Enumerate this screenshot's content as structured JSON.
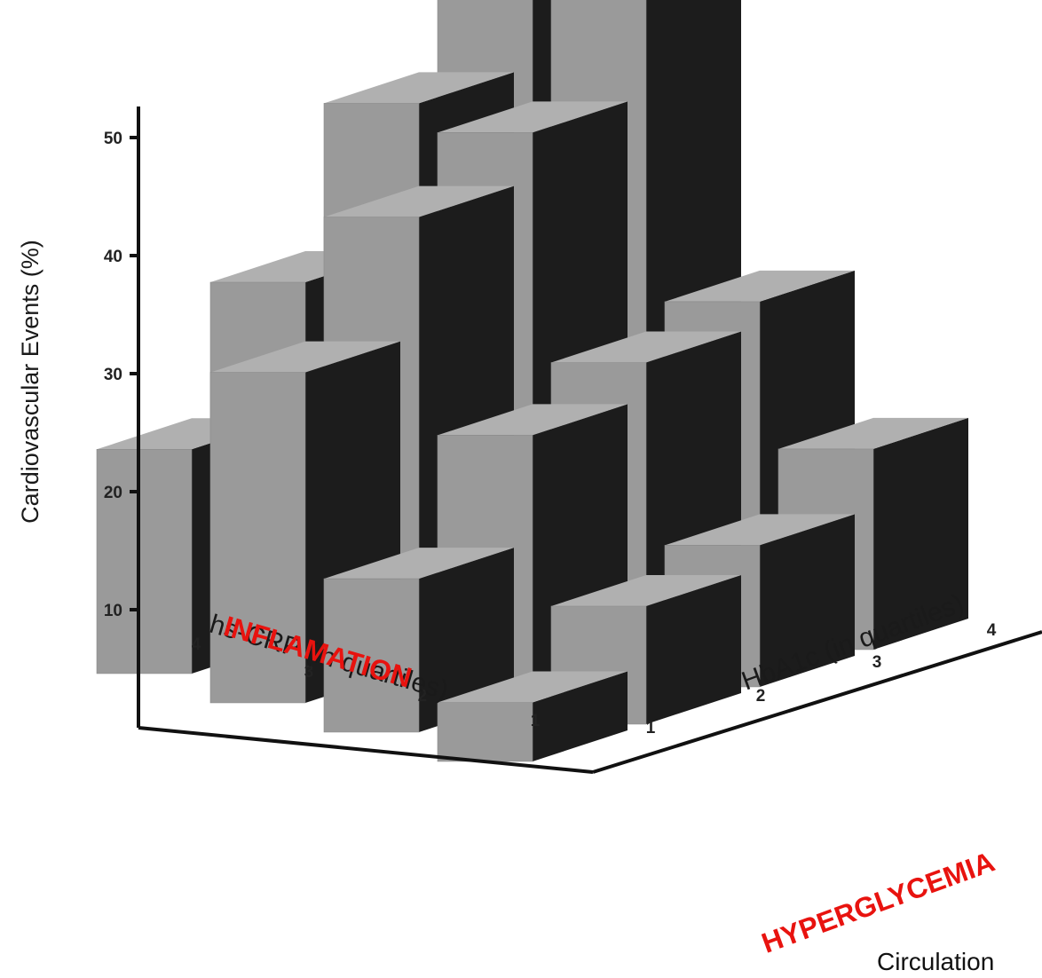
{
  "chart_data": {
    "type": "bar",
    "subtype": "3d-bar-grid",
    "ylabel": "Cardiovascular Events (%)",
    "y_ticks": [
      "10",
      "20",
      "30",
      "40",
      "50"
    ],
    "ylim": [
      0,
      50
    ],
    "x_axis": {
      "label": "hs-CRP (in quartiles)",
      "annotation": "INFLAMATION",
      "categories": [
        "1",
        "2",
        "3",
        "4"
      ]
    },
    "z_axis": {
      "label": "HbA1c (in quartiles)",
      "annotation": "HYPERGLYCEMIA",
      "categories": [
        "1",
        "2",
        "3",
        "4"
      ]
    },
    "series": [
      {
        "hs_crp_quartile": "1",
        "values": [
          5,
          10,
          12,
          17
        ]
      },
      {
        "hs_crp_quartile": "2",
        "values": [
          13,
          22,
          25,
          27
        ]
      },
      {
        "hs_crp_quartile": "3",
        "values": [
          28,
          38,
          42,
          54
        ]
      },
      {
        "hs_crp_quartile": "4",
        "values": [
          19,
          30,
          42,
          55
        ]
      }
    ],
    "colors": {
      "front_face": "#9a9a9a",
      "side_face": "#1c1c1c",
      "top_face": "#b0b0b0",
      "annotation": "#e8130f"
    }
  },
  "source_note": "Circulation"
}
